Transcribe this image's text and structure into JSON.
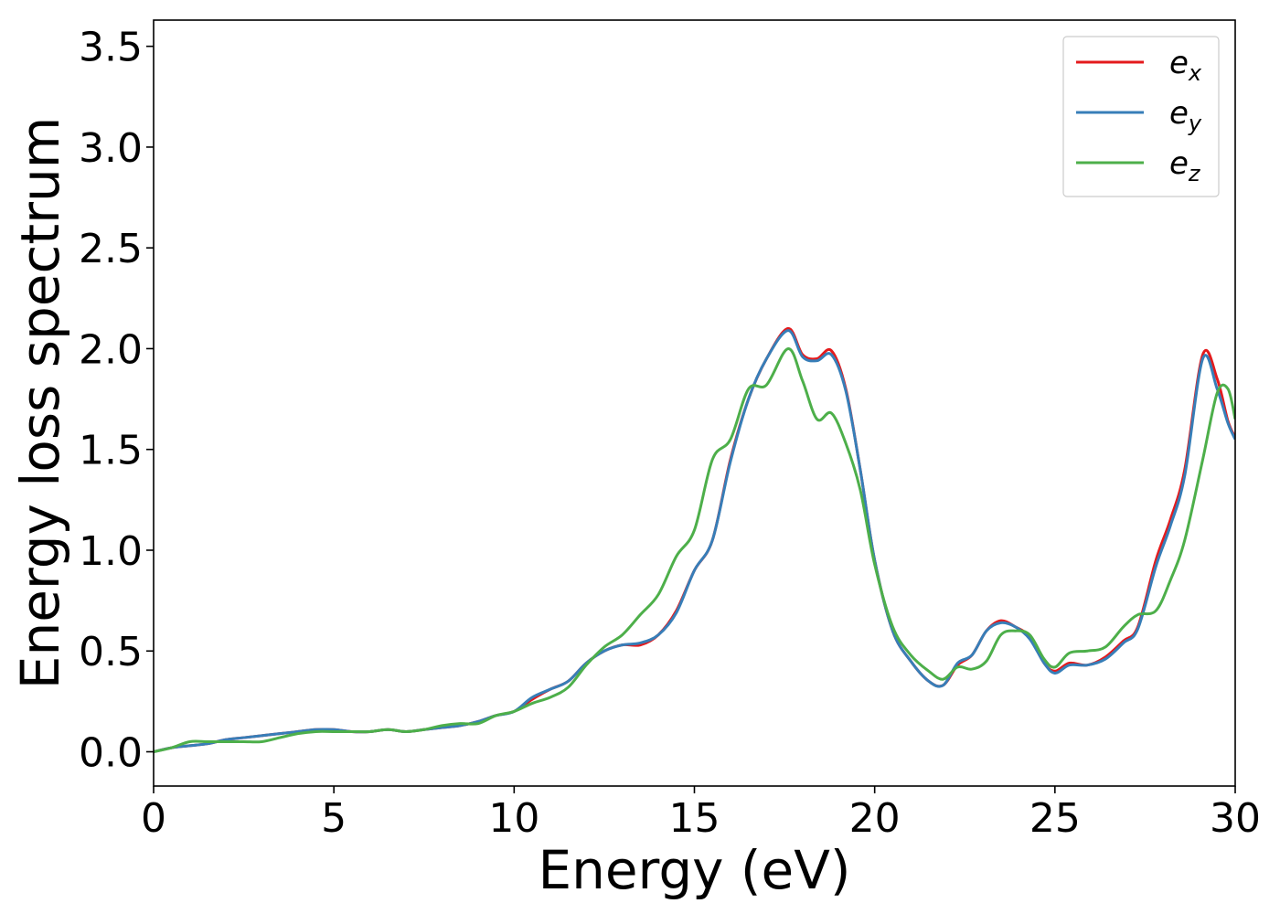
{
  "chart_data": {
    "type": "line",
    "xlabel": "Energy (eV)",
    "ylabel": "Energy loss spectrum",
    "xlim": [
      0,
      30
    ],
    "ylim": [
      -0.17,
      3.63
    ],
    "xticks": [
      0,
      5,
      10,
      15,
      20,
      25,
      30
    ],
    "xtick_labels": [
      "0",
      "5",
      "10",
      "15",
      "20",
      "25",
      "30"
    ],
    "yticks": [
      0.0,
      0.5,
      1.0,
      1.5,
      2.0,
      2.5,
      3.0,
      3.5
    ],
    "ytick_labels": [
      "0.0",
      "0.5",
      "1.0",
      "1.5",
      "2.0",
      "2.5",
      "3.0",
      "3.5"
    ],
    "grid": false,
    "legend_position": "top-right",
    "series": [
      {
        "name_base": "e",
        "name_sub": "x",
        "color": "#e41a1c",
        "x": [
          0,
          0.5,
          1,
          1.5,
          2,
          2.5,
          3,
          3.5,
          4,
          4.5,
          5,
          5.5,
          6,
          6.5,
          7,
          7.5,
          8,
          8.5,
          9,
          9.5,
          10,
          10.5,
          11,
          11.5,
          12,
          12.5,
          13,
          13.5,
          14,
          14.5,
          15,
          15.5,
          16,
          16.5,
          17,
          17.6,
          18,
          18.4,
          18.8,
          19.2,
          19.6,
          20,
          20.5,
          21,
          21.5,
          21.9,
          22.3,
          22.7,
          23.1,
          23.5,
          23.9,
          24.3,
          24.7,
          25,
          25.4,
          25.9,
          26.4,
          26.9,
          27.3,
          27.8,
          28.2,
          28.6,
          29.1,
          29.5,
          29.8,
          30
        ],
        "y": [
          0.0,
          0.02,
          0.03,
          0.04,
          0.06,
          0.07,
          0.08,
          0.09,
          0.1,
          0.11,
          0.11,
          0.1,
          0.1,
          0.11,
          0.1,
          0.11,
          0.12,
          0.13,
          0.15,
          0.18,
          0.2,
          0.26,
          0.31,
          0.35,
          0.44,
          0.5,
          0.53,
          0.53,
          0.58,
          0.7,
          0.9,
          1.05,
          1.45,
          1.75,
          1.95,
          2.1,
          1.97,
          1.95,
          1.99,
          1.8,
          1.4,
          0.95,
          0.6,
          0.45,
          0.35,
          0.33,
          0.43,
          0.48,
          0.6,
          0.65,
          0.62,
          0.57,
          0.44,
          0.4,
          0.44,
          0.43,
          0.47,
          0.55,
          0.62,
          0.95,
          1.15,
          1.4,
          1.97,
          1.85,
          1.64,
          1.56
        ]
      },
      {
        "name_base": "e",
        "name_sub": "y",
        "color": "#377eb8",
        "x": [
          0,
          0.5,
          1,
          1.5,
          2,
          2.5,
          3,
          3.5,
          4,
          4.5,
          5,
          5.5,
          6,
          6.5,
          7,
          7.5,
          8,
          8.5,
          9,
          9.5,
          10,
          10.5,
          11,
          11.5,
          12,
          12.5,
          13,
          13.5,
          14,
          14.5,
          15,
          15.5,
          16,
          16.5,
          17,
          17.6,
          18,
          18.4,
          18.8,
          19.2,
          19.6,
          20,
          20.5,
          21,
          21.5,
          21.9,
          22.3,
          22.7,
          23.1,
          23.5,
          23.9,
          24.3,
          24.7,
          25,
          25.4,
          25.9,
          26.4,
          26.9,
          27.3,
          27.8,
          28.2,
          28.6,
          29.1,
          29.5,
          29.8,
          30
        ],
        "y": [
          0.0,
          0.02,
          0.03,
          0.04,
          0.06,
          0.07,
          0.08,
          0.09,
          0.1,
          0.11,
          0.11,
          0.1,
          0.1,
          0.11,
          0.1,
          0.11,
          0.12,
          0.13,
          0.15,
          0.18,
          0.2,
          0.27,
          0.31,
          0.35,
          0.44,
          0.5,
          0.53,
          0.54,
          0.58,
          0.69,
          0.9,
          1.05,
          1.44,
          1.75,
          1.95,
          2.09,
          1.96,
          1.94,
          1.97,
          1.79,
          1.4,
          0.95,
          0.6,
          0.45,
          0.35,
          0.33,
          0.44,
          0.48,
          0.6,
          0.64,
          0.62,
          0.56,
          0.44,
          0.39,
          0.43,
          0.43,
          0.46,
          0.54,
          0.61,
          0.92,
          1.12,
          1.37,
          1.95,
          1.8,
          1.63,
          1.55
        ]
      },
      {
        "name_base": "e",
        "name_sub": "z",
        "color": "#4daf4a",
        "x": [
          0,
          0.5,
          1,
          1.5,
          2,
          2.5,
          3,
          3.5,
          4,
          4.5,
          5,
          5.5,
          6,
          6.5,
          7,
          7.5,
          8,
          8.5,
          9,
          9.5,
          10,
          10.5,
          11,
          11.5,
          12,
          12.5,
          13,
          13.5,
          14,
          14.5,
          15,
          15.5,
          16,
          16.5,
          17,
          17.6,
          18,
          18.4,
          18.8,
          19.2,
          19.6,
          20,
          20.5,
          21,
          21.5,
          21.9,
          22.3,
          22.7,
          23.1,
          23.5,
          23.9,
          24.3,
          24.7,
          25,
          25.4,
          25.9,
          26.4,
          26.9,
          27.3,
          27.8,
          28.2,
          28.6,
          29.1,
          29.5,
          29.8,
          30
        ],
        "y": [
          0.0,
          0.02,
          0.05,
          0.05,
          0.05,
          0.05,
          0.05,
          0.07,
          0.09,
          0.1,
          0.1,
          0.1,
          0.1,
          0.11,
          0.1,
          0.11,
          0.13,
          0.14,
          0.14,
          0.18,
          0.2,
          0.24,
          0.27,
          0.32,
          0.43,
          0.52,
          0.58,
          0.68,
          0.78,
          0.97,
          1.1,
          1.45,
          1.55,
          1.8,
          1.82,
          2.0,
          1.84,
          1.65,
          1.68,
          1.53,
          1.3,
          0.93,
          0.62,
          0.48,
          0.4,
          0.36,
          0.42,
          0.41,
          0.45,
          0.58,
          0.6,
          0.58,
          0.46,
          0.42,
          0.49,
          0.5,
          0.52,
          0.62,
          0.68,
          0.7,
          0.85,
          1.05,
          1.45,
          1.78,
          1.8,
          1.65
        ]
      }
    ]
  }
}
